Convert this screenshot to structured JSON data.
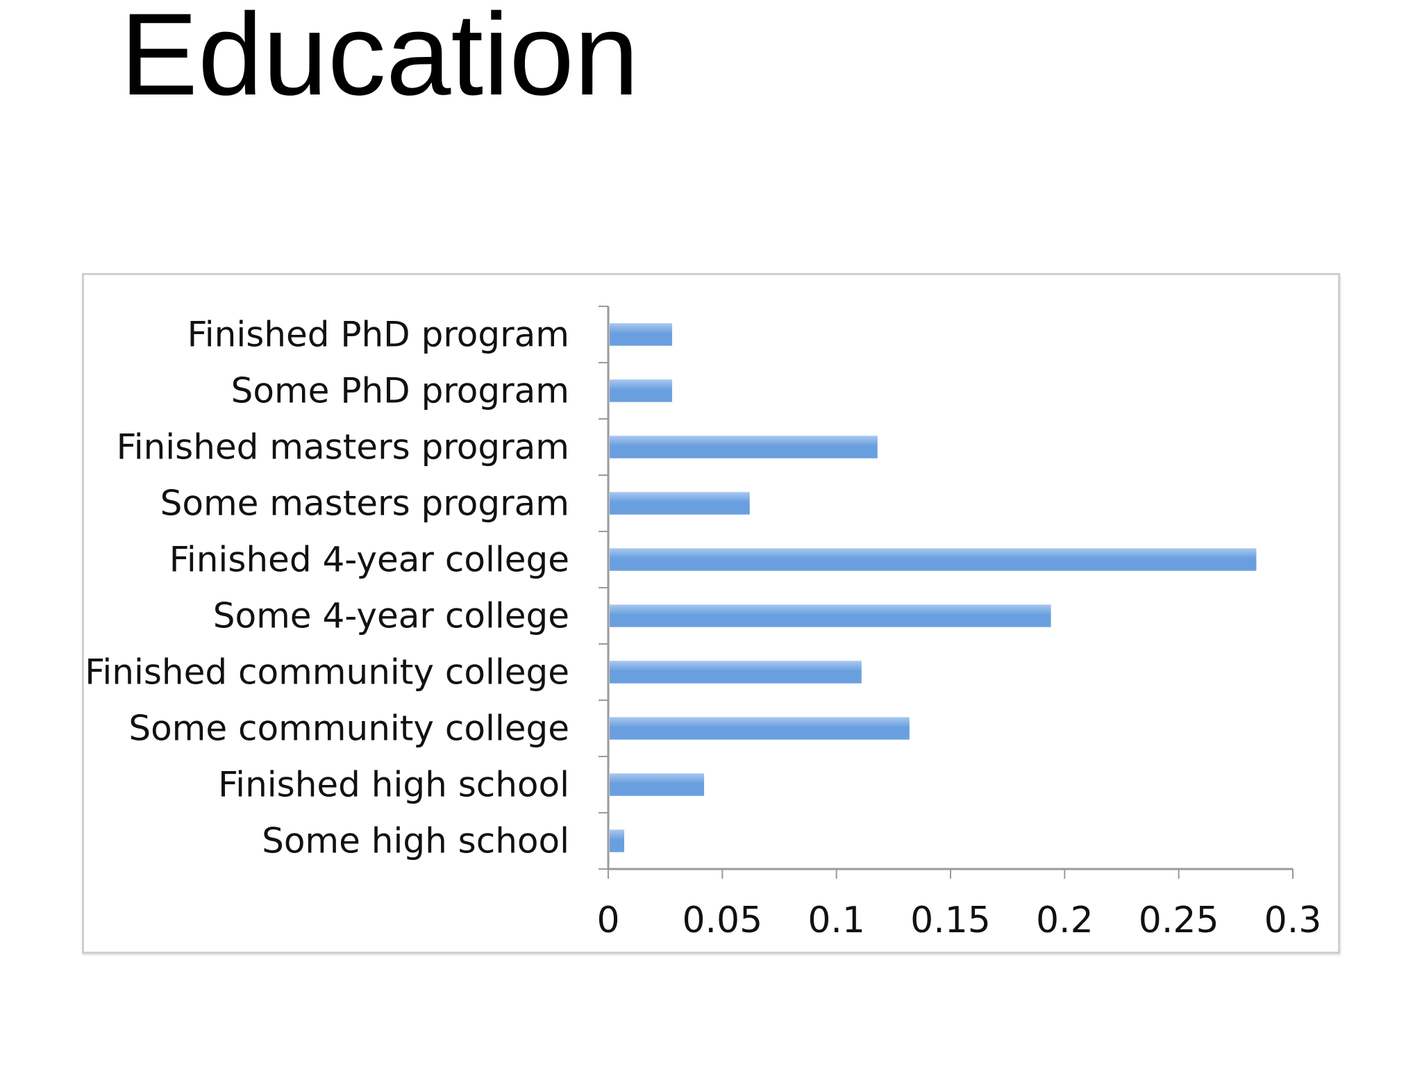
{
  "slide": {
    "title": "Education"
  },
  "chart_data": {
    "type": "bar",
    "orientation": "horizontal",
    "categories": [
      "Finished PhD program",
      "Some PhD program",
      "Finished masters program",
      "Some masters program",
      "Finished 4-year college",
      "Some 4-year college",
      "Finished community college",
      "Some community college",
      "Finished high school",
      "Some high school"
    ],
    "values": [
      0.028,
      0.028,
      0.118,
      0.062,
      0.284,
      0.194,
      0.111,
      0.132,
      0.042,
      0.007
    ],
    "xlim": [
      0,
      0.3
    ],
    "xticks": [
      "0",
      "0.05",
      "0.1",
      "0.15",
      "0.2",
      "0.25",
      "0.3"
    ],
    "title": "",
    "xlabel": "",
    "ylabel": "",
    "grid": false,
    "legend": "none",
    "colors": {
      "bar": "#6a9fdf",
      "bar_highlight": "#a9c8f0",
      "axis": "#9a9a9a"
    }
  }
}
